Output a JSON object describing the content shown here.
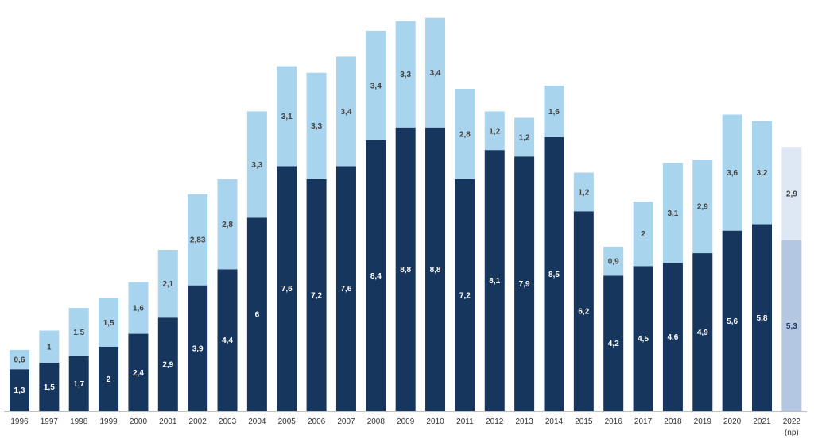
{
  "chart_data": {
    "type": "bar",
    "stacked": true,
    "title": "",
    "xlabel": "",
    "ylabel": "",
    "ylim": [
      0,
      12.5
    ],
    "grid": false,
    "legend": "none",
    "categories": [
      "1996",
      "1997",
      "1998",
      "1999",
      "2000",
      "2001",
      "2002",
      "2003",
      "2004",
      "2005",
      "2006",
      "2007",
      "2008",
      "2009",
      "2010",
      "2011",
      "2012",
      "2013",
      "2014",
      "2015",
      "2016",
      "2017",
      "2018",
      "2019",
      "2020",
      "2021",
      "2022"
    ],
    "category_sublabels": [
      "",
      "",
      "",
      "",
      "",
      "",
      "",
      "",
      "",
      "",
      "",
      "",
      "",
      "",
      "",
      "",
      "",
      "",
      "",
      "",
      "",
      "",
      "",
      "",
      "",
      "",
      "(np)"
    ],
    "series": [
      {
        "values": [
          1.3,
          1.5,
          1.7,
          2,
          2.4,
          2.9,
          3.9,
          4.4,
          6,
          7.6,
          7.2,
          7.6,
          8.4,
          8.8,
          8.8,
          7.2,
          8.1,
          7.9,
          8.5,
          6.2,
          4.2,
          4.5,
          4.6,
          4.9,
          5.6,
          5.8,
          5.3
        ],
        "labels": [
          "1,3",
          "1,5",
          "1,7",
          "2",
          "2,4",
          "2,9",
          "3,9",
          "4,4",
          "6",
          "7,6",
          "7,2",
          "7,6",
          "8,4",
          "8,8",
          "8,8",
          "7,2",
          "8,1",
          "7,9",
          "8,5",
          "6,2",
          "4,2",
          "4,5",
          "4,6",
          "4,9",
          "5,6",
          "5,8",
          "5,3"
        ],
        "color": "#17365d",
        "projected_color": "#b4c7e2",
        "label_color": "#ffffff",
        "projected_label_color": "#17365d"
      },
      {
        "values": [
          0.6,
          1,
          1.5,
          1.5,
          1.6,
          2.1,
          2.83,
          2.8,
          3.3,
          3.1,
          3.3,
          3.4,
          3.4,
          3.3,
          3.4,
          2.8,
          1.2,
          1.2,
          1.6,
          1.2,
          0.9,
          2,
          3.1,
          2.9,
          3.6,
          3.2,
          2.9
        ],
        "labels": [
          "0,6",
          "1",
          "1,5",
          "1,5",
          "1,6",
          "2,1",
          "2,83",
          "2,8",
          "3,3",
          "3,1",
          "3,3",
          "3,4",
          "3,4",
          "3,3",
          "3,4",
          "2,8",
          "1,2",
          "1,2",
          "1,6",
          "1,2",
          "0,9",
          "2",
          "3,1",
          "2,9",
          "3,6",
          "3,2",
          "2,9"
        ],
        "color": "#a9d4ee",
        "projected_color": "#dde8f4",
        "label_color": "#404040",
        "projected_label_color": "#404040"
      }
    ],
    "projected_index": 26,
    "axis_color": "#bfbfbf"
  }
}
